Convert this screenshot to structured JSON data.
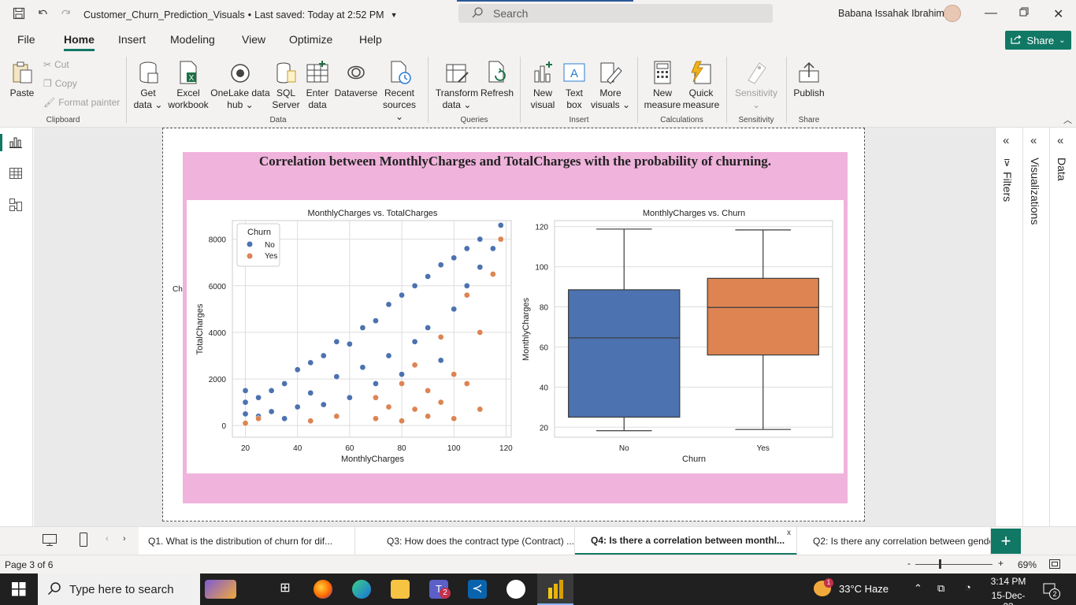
{
  "window": {
    "doc_title": "Customer_Churn_Prediction_Visuals",
    "saved_status": "Last saved: Today at 2:52 PM",
    "search_placeholder": "Search",
    "user_name": "Babana Issahak Ibrahim"
  },
  "menu": {
    "tabs": [
      "File",
      "Home",
      "Insert",
      "Modeling",
      "View",
      "Optimize",
      "Help"
    ],
    "active": "Home",
    "share_label": "Share"
  },
  "ribbon": {
    "clipboard": {
      "paste": "Paste",
      "cut": "Cut",
      "copy": "Copy",
      "format_painter": "Format painter",
      "group": "Clipboard"
    },
    "data": {
      "get_data": [
        "Get",
        "data"
      ],
      "excel": [
        "Excel",
        "workbook"
      ],
      "onelake": [
        "OneLake data",
        "hub"
      ],
      "sql": [
        "SQL",
        "Server"
      ],
      "enter": [
        "Enter",
        "data"
      ],
      "dataverse": [
        "Dataverse",
        ""
      ],
      "recent": [
        "Recent",
        "sources"
      ],
      "group": "Data"
    },
    "queries": {
      "transform": [
        "Transform",
        "data"
      ],
      "refresh": [
        "Refresh",
        ""
      ],
      "group": "Queries"
    },
    "insert": {
      "new_visual": [
        "New",
        "visual"
      ],
      "text_box": [
        "Text",
        "box"
      ],
      "more_visuals": [
        "More",
        "visuals"
      ],
      "group": "Insert"
    },
    "calculations": {
      "new_measure": [
        "New",
        "measure"
      ],
      "quick_measure": [
        "Quick",
        "measure"
      ],
      "group": "Calculations"
    },
    "sensitivity": {
      "label": "Sensitivity",
      "group": "Sensitivity"
    },
    "share": {
      "publish": "Publish",
      "group": "Share"
    }
  },
  "visual": {
    "title": "Correlation between MonthlyCharges and TotalCharges with the probability of churning.",
    "stub_text": "Ch"
  },
  "right_panes": {
    "filters": "Filters",
    "visualizations": "Visualizations",
    "data": "Data"
  },
  "page_tabs": {
    "tabs": [
      "Q1. What is the distribution of churn for dif...",
      "Q3: How does the contract type (Contract) ...",
      "Q4: Is there a correlation between monthl...",
      "Q2: Is there any correlation between gende"
    ],
    "active_index": 2,
    "close_glyph": "x"
  },
  "status": {
    "page": "Page 3 of 6",
    "zoom": "69%"
  },
  "taskbar": {
    "search_placeholder": "Type here to search",
    "weather": "33°C  Haze",
    "time": "3:14 PM",
    "date": "15-Dec-23",
    "notification_count": "2",
    "teams_badge": "2",
    "weather_badge": "1"
  },
  "colors": {
    "no": "#4c72b0",
    "yes": "#dd8452",
    "accent": "#117865",
    "visual_bg": "#f0b3dc"
  },
  "chart_data": [
    {
      "type": "scatter",
      "title": "MonthlyCharges vs. TotalCharges",
      "xlabel": "MonthlyCharges",
      "ylabel": "TotalCharges",
      "xlim": [
        15,
        122
      ],
      "ylim": [
        -500,
        8800
      ],
      "xticks": [
        20,
        40,
        60,
        80,
        100,
        120
      ],
      "yticks": [
        0,
        2000,
        4000,
        6000,
        8000
      ],
      "legend": {
        "title": "Churn",
        "entries": [
          "No",
          "Yes"
        ],
        "placement": "top-left"
      },
      "grid": true,
      "series": [
        {
          "name": "No",
          "points": [
            [
              20,
              100
            ],
            [
              20,
              500
            ],
            [
              20,
              1000
            ],
            [
              20,
              1500
            ],
            [
              25,
              400
            ],
            [
              25,
              1200
            ],
            [
              30,
              600
            ],
            [
              30,
              1500
            ],
            [
              35,
              300
            ],
            [
              35,
              1800
            ],
            [
              40,
              800
            ],
            [
              40,
              2400
            ],
            [
              45,
              1400
            ],
            [
              45,
              2700
            ],
            [
              50,
              900
            ],
            [
              50,
              3000
            ],
            [
              55,
              2100
            ],
            [
              55,
              3600
            ],
            [
              60,
              1200
            ],
            [
              60,
              3500
            ],
            [
              65,
              2500
            ],
            [
              65,
              4200
            ],
            [
              70,
              1800
            ],
            [
              70,
              4500
            ],
            [
              75,
              3000
            ],
            [
              75,
              5200
            ],
            [
              80,
              2200
            ],
            [
              80,
              5600
            ],
            [
              85,
              3600
            ],
            [
              85,
              6000
            ],
            [
              90,
              4200
            ],
            [
              90,
              6400
            ],
            [
              95,
              2800
            ],
            [
              95,
              6900
            ],
            [
              100,
              5000
            ],
            [
              100,
              7200
            ],
            [
              105,
              6000
            ],
            [
              105,
              7600
            ],
            [
              110,
              6800
            ],
            [
              110,
              8000
            ],
            [
              115,
              7600
            ],
            [
              118,
              8600
            ]
          ]
        },
        {
          "name": "Yes",
          "points": [
            [
              20,
              100
            ],
            [
              25,
              300
            ],
            [
              45,
              200
            ],
            [
              55,
              400
            ],
            [
              70,
              300
            ],
            [
              70,
              1200
            ],
            [
              75,
              800
            ],
            [
              80,
              200
            ],
            [
              80,
              1800
            ],
            [
              85,
              700
            ],
            [
              85,
              2600
            ],
            [
              90,
              400
            ],
            [
              90,
              1500
            ],
            [
              95,
              1000
            ],
            [
              95,
              3800
            ],
            [
              100,
              300
            ],
            [
              100,
              2200
            ],
            [
              105,
              1800
            ],
            [
              105,
              5600
            ],
            [
              110,
              700
            ],
            [
              110,
              4000
            ],
            [
              115,
              6500
            ],
            [
              118,
              8000
            ]
          ]
        }
      ]
    },
    {
      "type": "box",
      "title": "MonthlyCharges vs. Churn",
      "xlabel": "Churn",
      "ylabel": "MonthlyCharges",
      "categories": [
        "No",
        "Yes"
      ],
      "ylim": [
        15,
        123
      ],
      "yticks": [
        20,
        40,
        60,
        80,
        100,
        120
      ],
      "grid": true,
      "boxes": [
        {
          "name": "No",
          "min": 18.25,
          "q1": 25,
          "median": 64.5,
          "q3": 88.5,
          "max": 118.75,
          "color": "#4c72b0"
        },
        {
          "name": "Yes",
          "min": 18.85,
          "q1": 56,
          "median": 79.7,
          "q3": 94.2,
          "max": 118.35,
          "color": "#dd8452"
        }
      ]
    }
  ]
}
